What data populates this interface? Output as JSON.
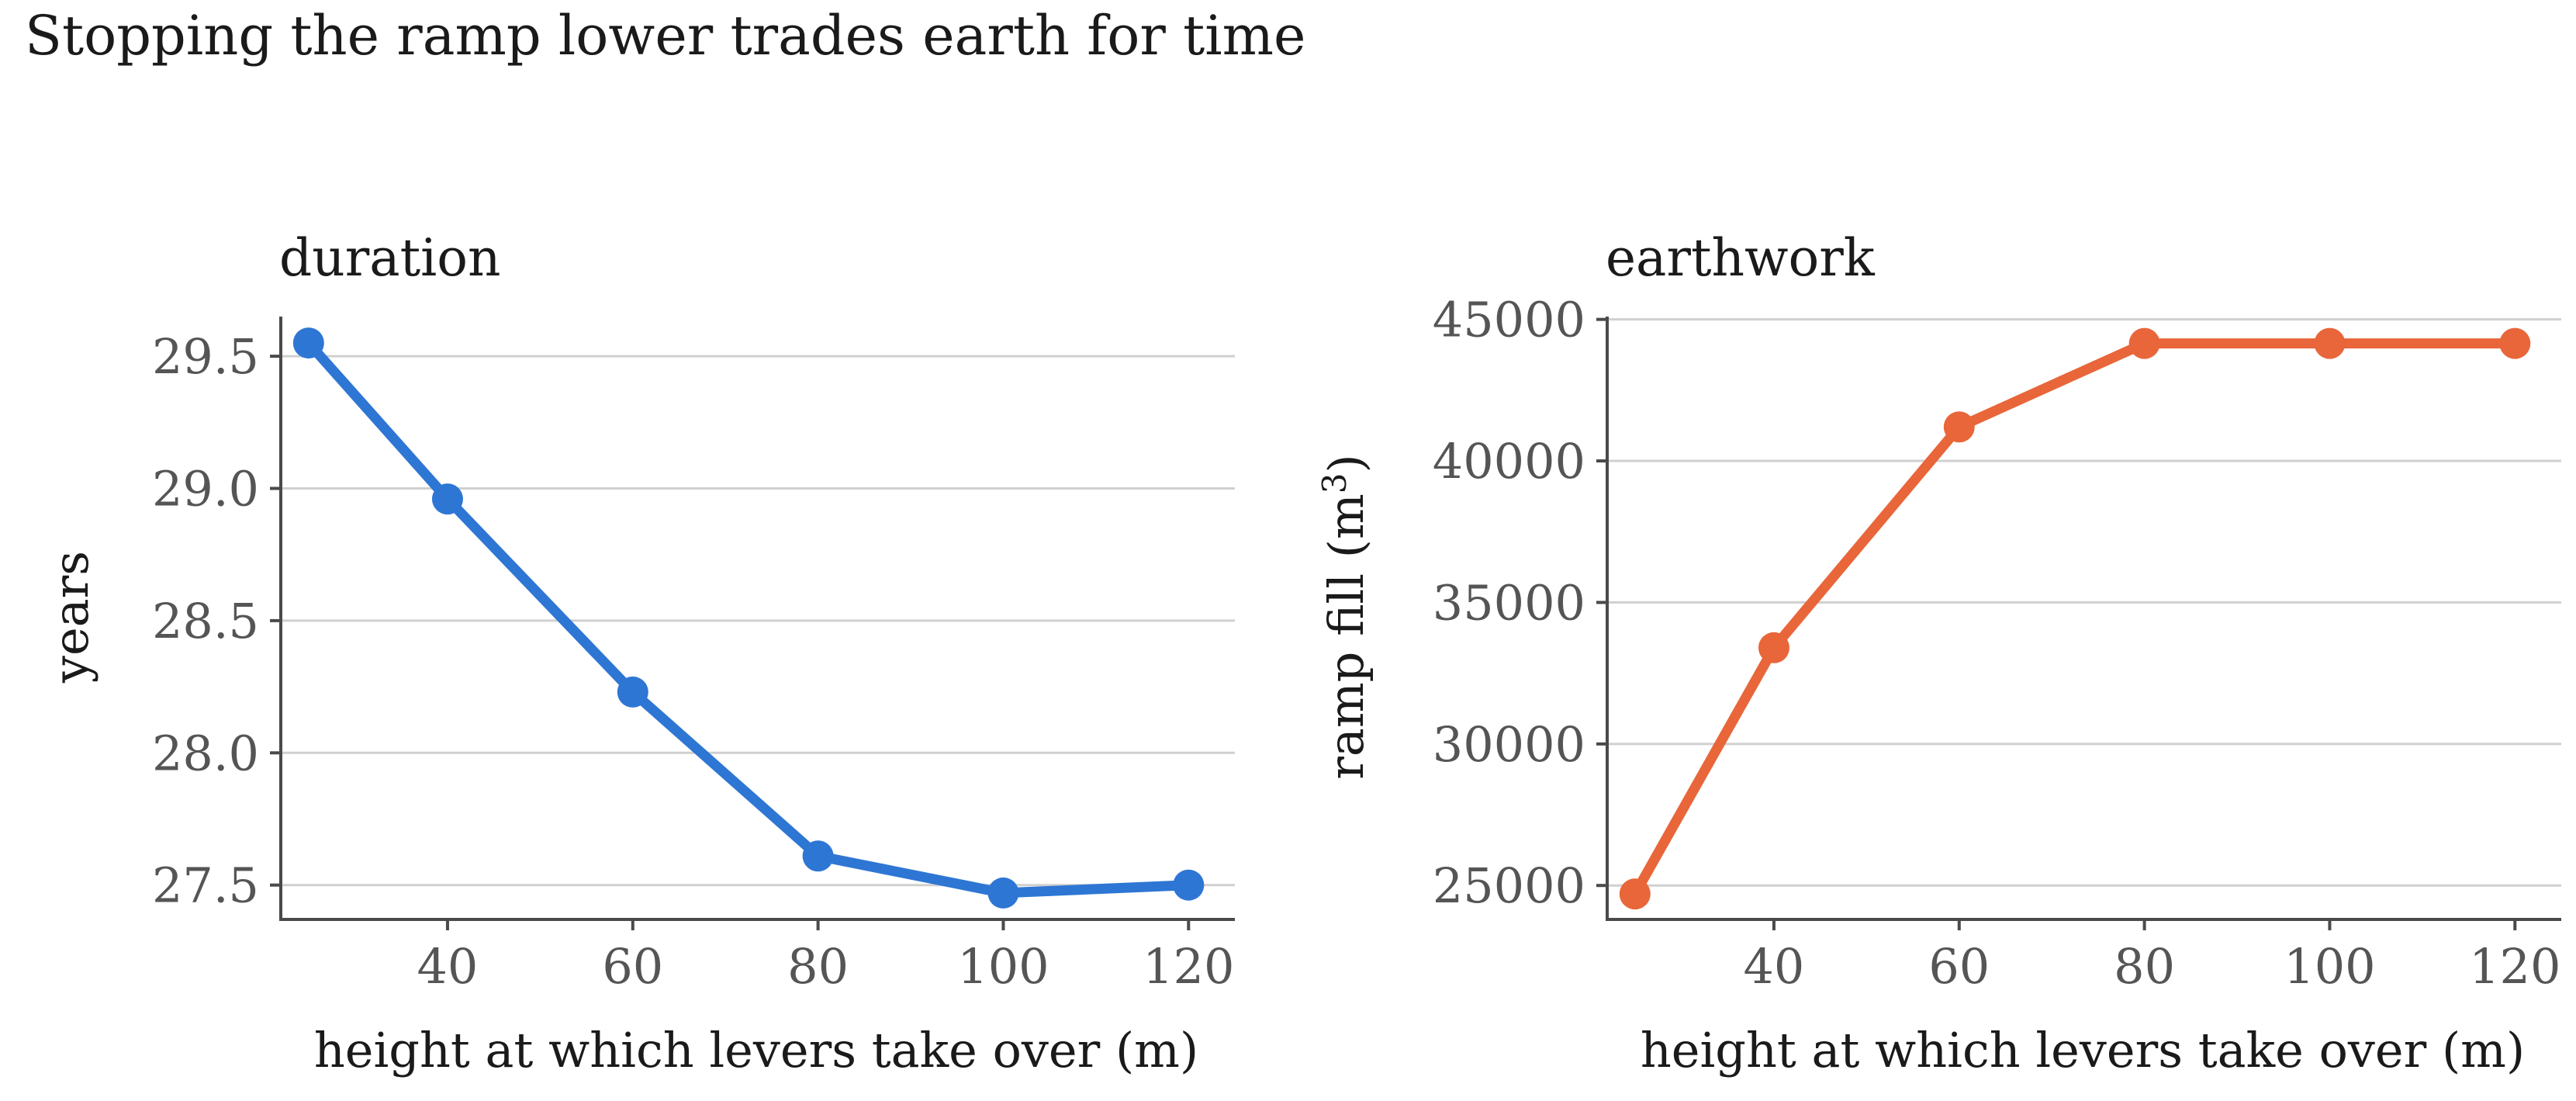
{
  "figure": {
    "suptitle": "Stopping the ramp lower trades earth for time"
  },
  "chart_data": [
    {
      "type": "line",
      "title": "duration",
      "xlabel": "height at which levers take over (m)",
      "ylabel": "years",
      "x": [
        25,
        40,
        60,
        80,
        100,
        120
      ],
      "series": [
        {
          "values": [
            29.55,
            28.96,
            28.23,
            27.61,
            27.47,
            27.5
          ]
        }
      ],
      "xticks": [
        "40",
        "60",
        "80",
        "100",
        "120"
      ],
      "yticks": [
        "27.5",
        "28.0",
        "28.5",
        "29.0",
        "29.5"
      ],
      "xlim": [
        22,
        125
      ],
      "ylim": [
        27.37,
        29.65
      ],
      "color": "#2e76d4",
      "grid": "horizontal",
      "legend": "none"
    },
    {
      "type": "line",
      "title": "earthwork",
      "xlabel": "height at which levers take over (m)",
      "ylabel": "ramp fill (m3)",
      "x": [
        25,
        40,
        60,
        80,
        100,
        120
      ],
      "series": [
        {
          "values": [
            24700,
            33400,
            41200,
            44150,
            44150,
            44150
          ]
        }
      ],
      "xticks": [
        "40",
        "60",
        "80",
        "100",
        "120"
      ],
      "yticks": [
        "25000",
        "30000",
        "35000",
        "40000",
        "45000"
      ],
      "xlim": [
        22,
        125
      ],
      "ylim": [
        23800,
        45100
      ],
      "color": "#e8663a",
      "grid": "horizontal",
      "legend": "none"
    }
  ]
}
